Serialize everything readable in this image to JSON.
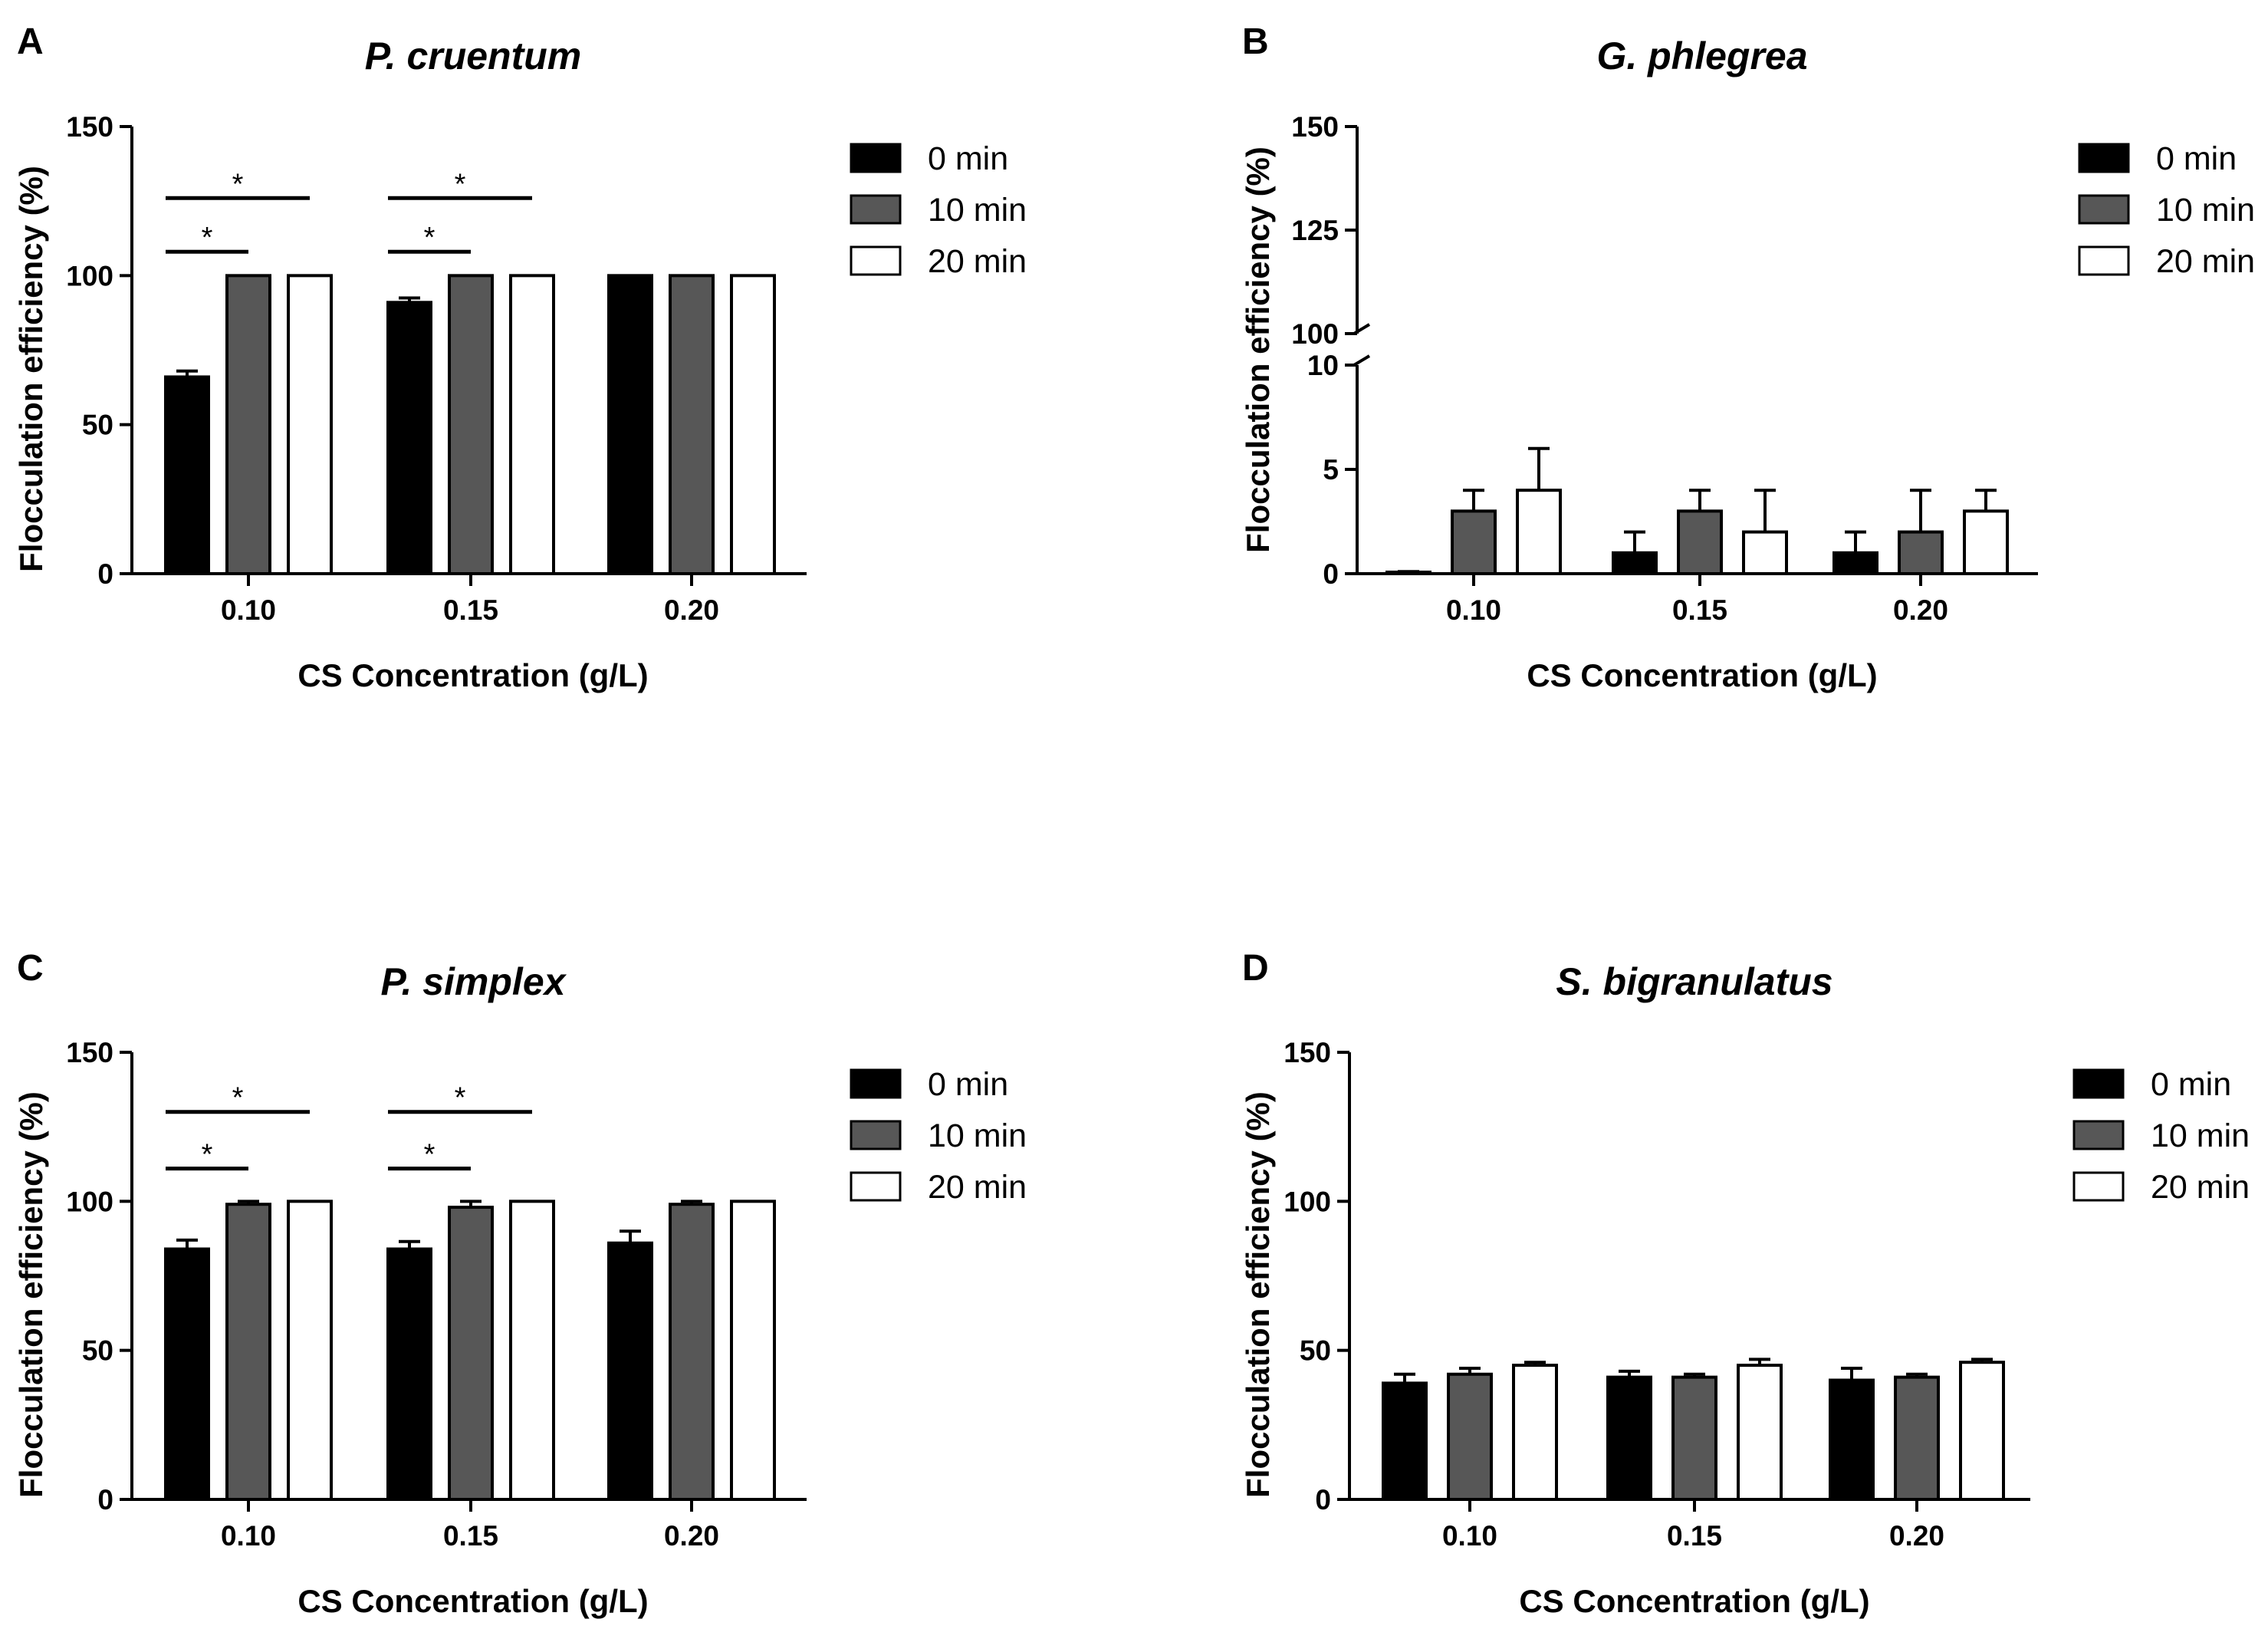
{
  "colors": {
    "0 min": "#000000",
    "10 min": "#575757",
    "20 min": "#ffffff",
    "axis": "#000000"
  },
  "chart_data": [
    {
      "panel": "A",
      "type": "bar",
      "title": "P. cruentum",
      "xlabel": "CS Concentration (g/L)",
      "ylabel": "Flocculation efficiency (%)",
      "categories": [
        "0.10",
        "0.15",
        "0.20"
      ],
      "ylim": [
        0,
        150
      ],
      "yticks": [
        0,
        50,
        100,
        150
      ],
      "series": [
        {
          "name": "0 min",
          "values": [
            66,
            91,
            100
          ],
          "errors": [
            2,
            1.5,
            0
          ]
        },
        {
          "name": "10 min",
          "values": [
            100,
            100,
            100
          ],
          "errors": [
            0,
            0,
            0
          ]
        },
        {
          "name": "20 min",
          "values": [
            100,
            100,
            100
          ],
          "errors": [
            0,
            0,
            0
          ]
        }
      ],
      "significance": [
        {
          "category": "0.10",
          "from": "0 min",
          "to": "10 min",
          "label": "*",
          "y": 108
        },
        {
          "category": "0.10",
          "from": "0 min",
          "to": "20 min",
          "label": "*",
          "y": 126
        },
        {
          "category": "0.15",
          "from": "0 min",
          "to": "10 min",
          "label": "*",
          "y": 108
        },
        {
          "category": "0.15",
          "from": "0 min",
          "to": "20 min",
          "label": "*",
          "y": 126
        }
      ]
    },
    {
      "panel": "B",
      "type": "bar",
      "title": "G. phlegrea",
      "xlabel": "CS Concentration (g/L)",
      "ylabel": "Flocculation efficiency (%)",
      "categories": [
        "0.10",
        "0.15",
        "0.20"
      ],
      "broken_axis": {
        "lower": [
          0,
          10
        ],
        "upper": [
          100,
          150
        ],
        "lower_ticks": [
          0,
          5,
          10
        ],
        "upper_ticks": [
          100,
          125,
          150
        ]
      },
      "series": [
        {
          "name": "0 min",
          "values": [
            0,
            1,
            1
          ],
          "errors": [
            0.1,
            1,
            1
          ]
        },
        {
          "name": "10 min",
          "values": [
            3,
            3,
            2
          ],
          "errors": [
            1,
            1,
            2
          ]
        },
        {
          "name": "20 min",
          "values": [
            4,
            2,
            3
          ],
          "errors": [
            2,
            2,
            1
          ]
        }
      ]
    },
    {
      "panel": "C",
      "type": "bar",
      "title": "P. simplex",
      "xlabel": "CS Concentration (g/L)",
      "ylabel": "Flocculation efficiency (%)",
      "categories": [
        "0.10",
        "0.15",
        "0.20"
      ],
      "ylim": [
        0,
        150
      ],
      "yticks": [
        0,
        50,
        100,
        150
      ],
      "series": [
        {
          "name": "0 min",
          "values": [
            84,
            84,
            86
          ],
          "errors": [
            3,
            2.5,
            4
          ]
        },
        {
          "name": "10 min",
          "values": [
            99,
            98,
            99
          ],
          "errors": [
            1,
            2,
            1
          ]
        },
        {
          "name": "20 min",
          "values": [
            100,
            100,
            100
          ],
          "errors": [
            0,
            0,
            0
          ]
        }
      ],
      "significance": [
        {
          "category": "0.10",
          "from": "0 min",
          "to": "10 min",
          "label": "*",
          "y": 111
        },
        {
          "category": "0.10",
          "from": "0 min",
          "to": "20 min",
          "label": "*",
          "y": 130
        },
        {
          "category": "0.15",
          "from": "0 min",
          "to": "10 min",
          "label": "*",
          "y": 111
        },
        {
          "category": "0.15",
          "from": "0 min",
          "to": "20 min",
          "label": "*",
          "y": 130
        }
      ]
    },
    {
      "panel": "D",
      "type": "bar",
      "title": "S. bigranulatus",
      "xlabel": "CS Concentration (g/L)",
      "ylabel": "Flocculation efficiency (%)",
      "categories": [
        "0.10",
        "0.15",
        "0.20"
      ],
      "ylim": [
        0,
        150
      ],
      "yticks": [
        0,
        50,
        100,
        150
      ],
      "series": [
        {
          "name": "0 min",
          "values": [
            39,
            41,
            40
          ],
          "errors": [
            3,
            2,
            4
          ]
        },
        {
          "name": "10 min",
          "values": [
            42,
            41,
            41
          ],
          "errors": [
            2,
            1,
            1
          ]
        },
        {
          "name": "20 min",
          "values": [
            45,
            45,
            46
          ],
          "errors": [
            1,
            2,
            1
          ]
        }
      ]
    }
  ]
}
